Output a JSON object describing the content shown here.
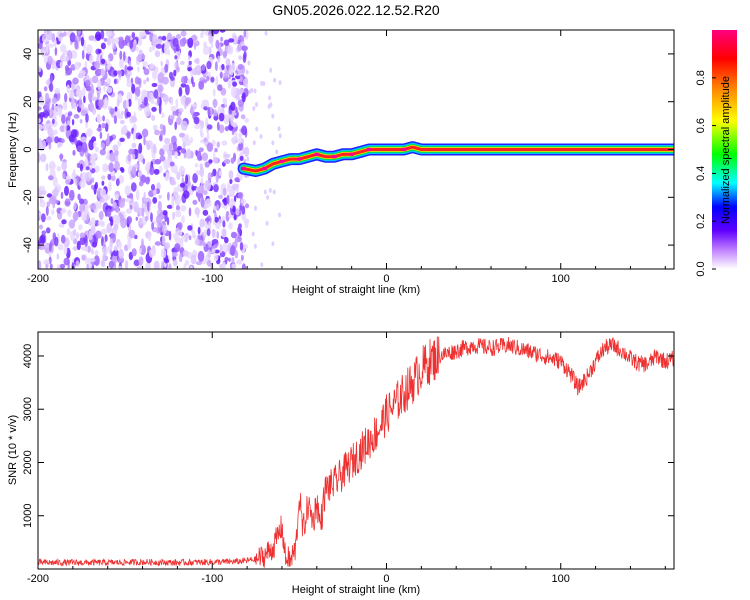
{
  "title": "GN05.2026.022.12.52.R20",
  "chart_data": [
    {
      "type": "heatmap",
      "xlabel": "Height of straight line (km)",
      "ylabel": "Frequency (Hz)",
      "xlim": [
        -200,
        165
      ],
      "ylim": [
        -50,
        50
      ],
      "x_ticks": [
        -200,
        -100,
        0,
        100
      ],
      "y_ticks": [
        -40,
        -20,
        0,
        20,
        40
      ],
      "colorbar": {
        "label": "Normalized spectral amplitude",
        "range": [
          0.0,
          1.0
        ],
        "ticks": [
          0.0,
          0.2,
          0.4,
          0.6,
          0.8
        ],
        "tick_labels": [
          "0.0",
          "0.2",
          "0.4",
          "0.6",
          "0.8"
        ],
        "colors": [
          "#ffffff",
          "#c080ff",
          "#6000ff",
          "#0000ff",
          "#00ffff",
          "#00ff00",
          "#ffff00",
          "#ff8000",
          "#ff0000",
          "#ff0080"
        ]
      },
      "noise_region_x": [
        -200,
        -80
      ],
      "signal_track": [
        {
          "x": -82,
          "y": -8
        },
        {
          "x": -75,
          "y": -9
        },
        {
          "x": -70,
          "y": -8
        },
        {
          "x": -65,
          "y": -6
        },
        {
          "x": -60,
          "y": -5
        },
        {
          "x": -55,
          "y": -4
        },
        {
          "x": -50,
          "y": -4
        },
        {
          "x": -45,
          "y": -3
        },
        {
          "x": -40,
          "y": -2
        },
        {
          "x": -35,
          "y": -3
        },
        {
          "x": -30,
          "y": -3
        },
        {
          "x": -25,
          "y": -2
        },
        {
          "x": -20,
          "y": -2
        },
        {
          "x": -15,
          "y": -1
        },
        {
          "x": -10,
          "y": 0
        },
        {
          "x": 0,
          "y": 0
        },
        {
          "x": 10,
          "y": 0
        },
        {
          "x": 15,
          "y": 1
        },
        {
          "x": 20,
          "y": 0
        },
        {
          "x": 165,
          "y": 0
        }
      ]
    },
    {
      "type": "line",
      "xlabel": "Height of straight line (km)",
      "ylabel": "SNR (10 * v/v)",
      "xlim": [
        -200,
        165
      ],
      "ylim": [
        0,
        4450
      ],
      "x_ticks": [
        -200,
        -100,
        0,
        100
      ],
      "y_ticks": [
        1000,
        2000,
        3000,
        4000
      ],
      "series": [
        {
          "name": "SNR",
          "color": "#ee3030",
          "x": [
            -200,
            -180,
            -160,
            -140,
            -120,
            -100,
            -85,
            -75,
            -70,
            -67,
            -65,
            -62,
            -60,
            -58,
            -55,
            -52,
            -50,
            -48,
            -45,
            -42,
            -40,
            -38,
            -35,
            -30,
            -25,
            -20,
            -15,
            -10,
            -5,
            0,
            5,
            10,
            15,
            20,
            25,
            30,
            35,
            40,
            50,
            60,
            70,
            80,
            90,
            100,
            105,
            110,
            115,
            120,
            125,
            130,
            135,
            140,
            145,
            150,
            155,
            160,
            165
          ],
          "y": [
            120,
            120,
            120,
            130,
            120,
            130,
            140,
            180,
            250,
            350,
            400,
            650,
            800,
            200,
            150,
            400,
            1400,
            700,
            1200,
            900,
            1300,
            800,
            1500,
            1600,
            1800,
            2000,
            2200,
            2400,
            2600,
            2900,
            3100,
            3300,
            3500,
            3750,
            3900,
            4000,
            4050,
            4100,
            4200,
            4150,
            4200,
            4100,
            4000,
            3900,
            3700,
            3400,
            3600,
            3900,
            4150,
            4200,
            4100,
            3950,
            3850,
            3850,
            4000,
            3900,
            3950
          ]
        }
      ]
    }
  ]
}
